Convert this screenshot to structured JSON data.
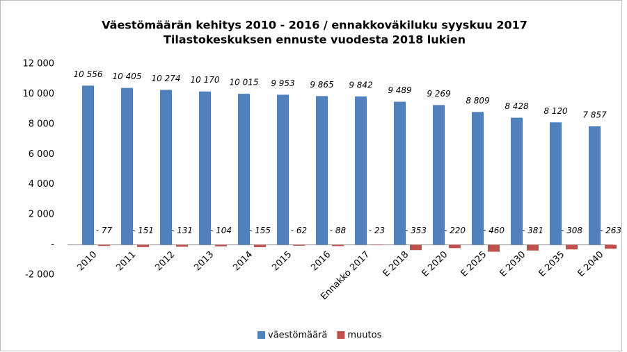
{
  "chart_data": {
    "type": "bar",
    "title": "Väestömäärän kehitys 2010 - 2016 / ennakkoväkiluku syyskuu 2017",
    "subtitle": "Tilastokeskuksen ennuste vuodesta 2018 lukien",
    "categories": [
      "2010",
      "2011",
      "2012",
      "2013",
      "2014",
      "2015",
      "2016",
      "Ennakko 2017",
      "E 2018",
      "E 2020",
      "E 2025",
      "E 2030",
      "E 2035",
      "E 2040"
    ],
    "series": [
      {
        "name": "väestömäärä",
        "color": "#4f81bd",
        "values": [
          10556,
          10405,
          10274,
          10170,
          10015,
          9953,
          9865,
          9842,
          9489,
          9269,
          8809,
          8428,
          8120,
          7857
        ],
        "value_labels": [
          "10 556",
          "10 405",
          "10 274",
          "10 170",
          "10 015",
          "9 953",
          "9 865",
          "9 842",
          "9 489",
          "9 269",
          "8 809",
          "8 428",
          "8 120",
          "7 857"
        ]
      },
      {
        "name": "muutos",
        "color": "#c0504d",
        "values": [
          -77,
          -151,
          -131,
          -104,
          -155,
          -62,
          -88,
          -23,
          -353,
          -220,
          -460,
          -381,
          -308,
          -263
        ],
        "value_labels": [
          "- 77",
          "- 151",
          "- 131",
          "- 104",
          "- 155",
          "- 62",
          "- 88",
          "- 23",
          "- 353",
          "- 220",
          "- 460",
          "- 381",
          "- 308",
          "- 263"
        ]
      }
    ],
    "ylim": [
      -2000,
      12000
    ],
    "yticks": [
      {
        "value": 12000,
        "label": "12 000"
      },
      {
        "value": 10000,
        "label": "10 000"
      },
      {
        "value": 8000,
        "label": "8 000"
      },
      {
        "value": 6000,
        "label": "6 000"
      },
      {
        "value": 4000,
        "label": "4 000"
      },
      {
        "value": 2000,
        "label": "2 000"
      },
      {
        "value": 0,
        "label": "-"
      },
      {
        "value": -2000,
        "label": "-2 000"
      }
    ],
    "legend": "bottom"
  }
}
